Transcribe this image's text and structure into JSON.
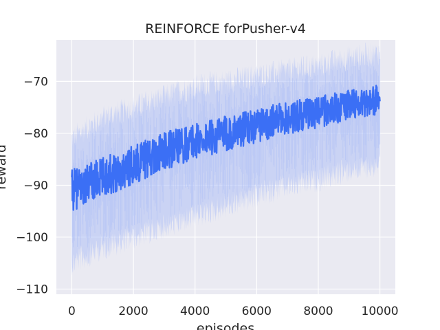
{
  "chart_data": {
    "type": "line",
    "title": "REINFORCE forPusher-v4",
    "xlabel": "episodes",
    "ylabel": "reward",
    "xlim": [
      -500,
      10500
    ],
    "ylim": [
      -111,
      -62
    ],
    "xticks": [
      0,
      2000,
      4000,
      6000,
      8000,
      10000
    ],
    "xtick_labels": [
      "0",
      "2000",
      "4000",
      "6000",
      "8000",
      "10000"
    ],
    "yticks": [
      -110,
      -100,
      -90,
      -80,
      -70
    ],
    "ytick_labels": [
      "−110",
      "−100",
      "−90",
      "−80",
      "−70"
    ],
    "grid": true,
    "colors": {
      "line": "#3b6ff5",
      "band": "#aebff5",
      "background": "#eaeaf2",
      "grid": "#ffffff"
    },
    "series": [
      {
        "x": [
          0,
          1000,
          2000,
          3000,
          4000,
          5000,
          6000,
          7000,
          8000,
          9000,
          10000
        ],
        "mean": [
          -91,
          -88.5,
          -86,
          -83.5,
          -81.5,
          -80,
          -78.5,
          -77,
          -76,
          -74.5,
          -73.5
        ],
        "upper": [
          -82,
          -78,
          -76,
          -74,
          -72,
          -71,
          -70,
          -69,
          -68,
          -66.5,
          -65.5
        ],
        "lower": [
          -104,
          -101,
          -99,
          -97,
          -95,
          -93,
          -91,
          -89,
          -88,
          -86,
          -85
        ]
      }
    ]
  }
}
